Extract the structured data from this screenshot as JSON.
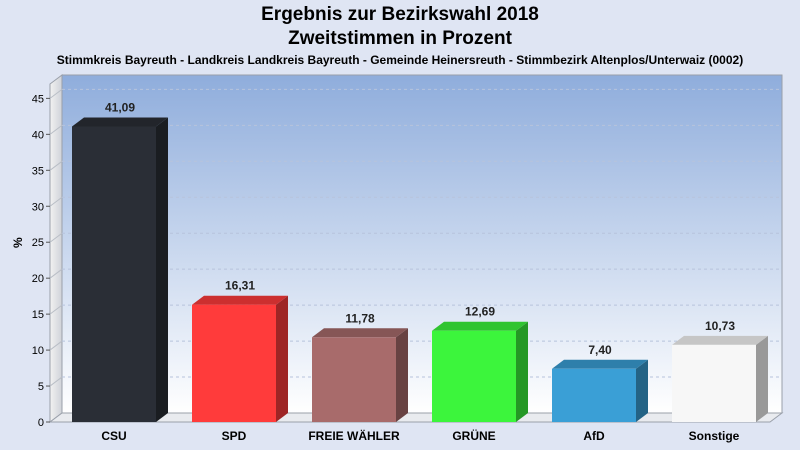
{
  "chart_data": {
    "type": "bar",
    "title": "Ergebnis zur Bezirkswahl 2018",
    "subtitle_line2": "Zweitstimmen in Prozent",
    "subtitle": "Stimmkreis Bayreuth - Landkreis Landkreis Bayreuth - Gemeinde Heinersreuth - Stimmbezirk Altenplos/Unterwaiz (0002)",
    "ylabel": "%",
    "xlabel": "",
    "ylim": [
      0,
      47
    ],
    "yticks": [
      "0",
      "5",
      "10",
      "15",
      "20",
      "25",
      "30",
      "35",
      "40",
      "45"
    ],
    "grid": true,
    "categories": [
      "CSU",
      "SPD",
      "FREIE WÄHLER",
      "GRÜNE",
      "AfD",
      "Sonstige"
    ],
    "values": [
      41.09,
      16.31,
      11.78,
      12.69,
      7.4,
      10.73
    ],
    "value_labels": [
      "41,09",
      "16,31",
      "11,78",
      "12,69",
      "7,40",
      "10,73"
    ],
    "colors": [
      "#2a2e36",
      "#ff3b3b",
      "#a86b6b",
      "#3cf53c",
      "#3a9fd6",
      "#f7f7f7"
    ]
  }
}
